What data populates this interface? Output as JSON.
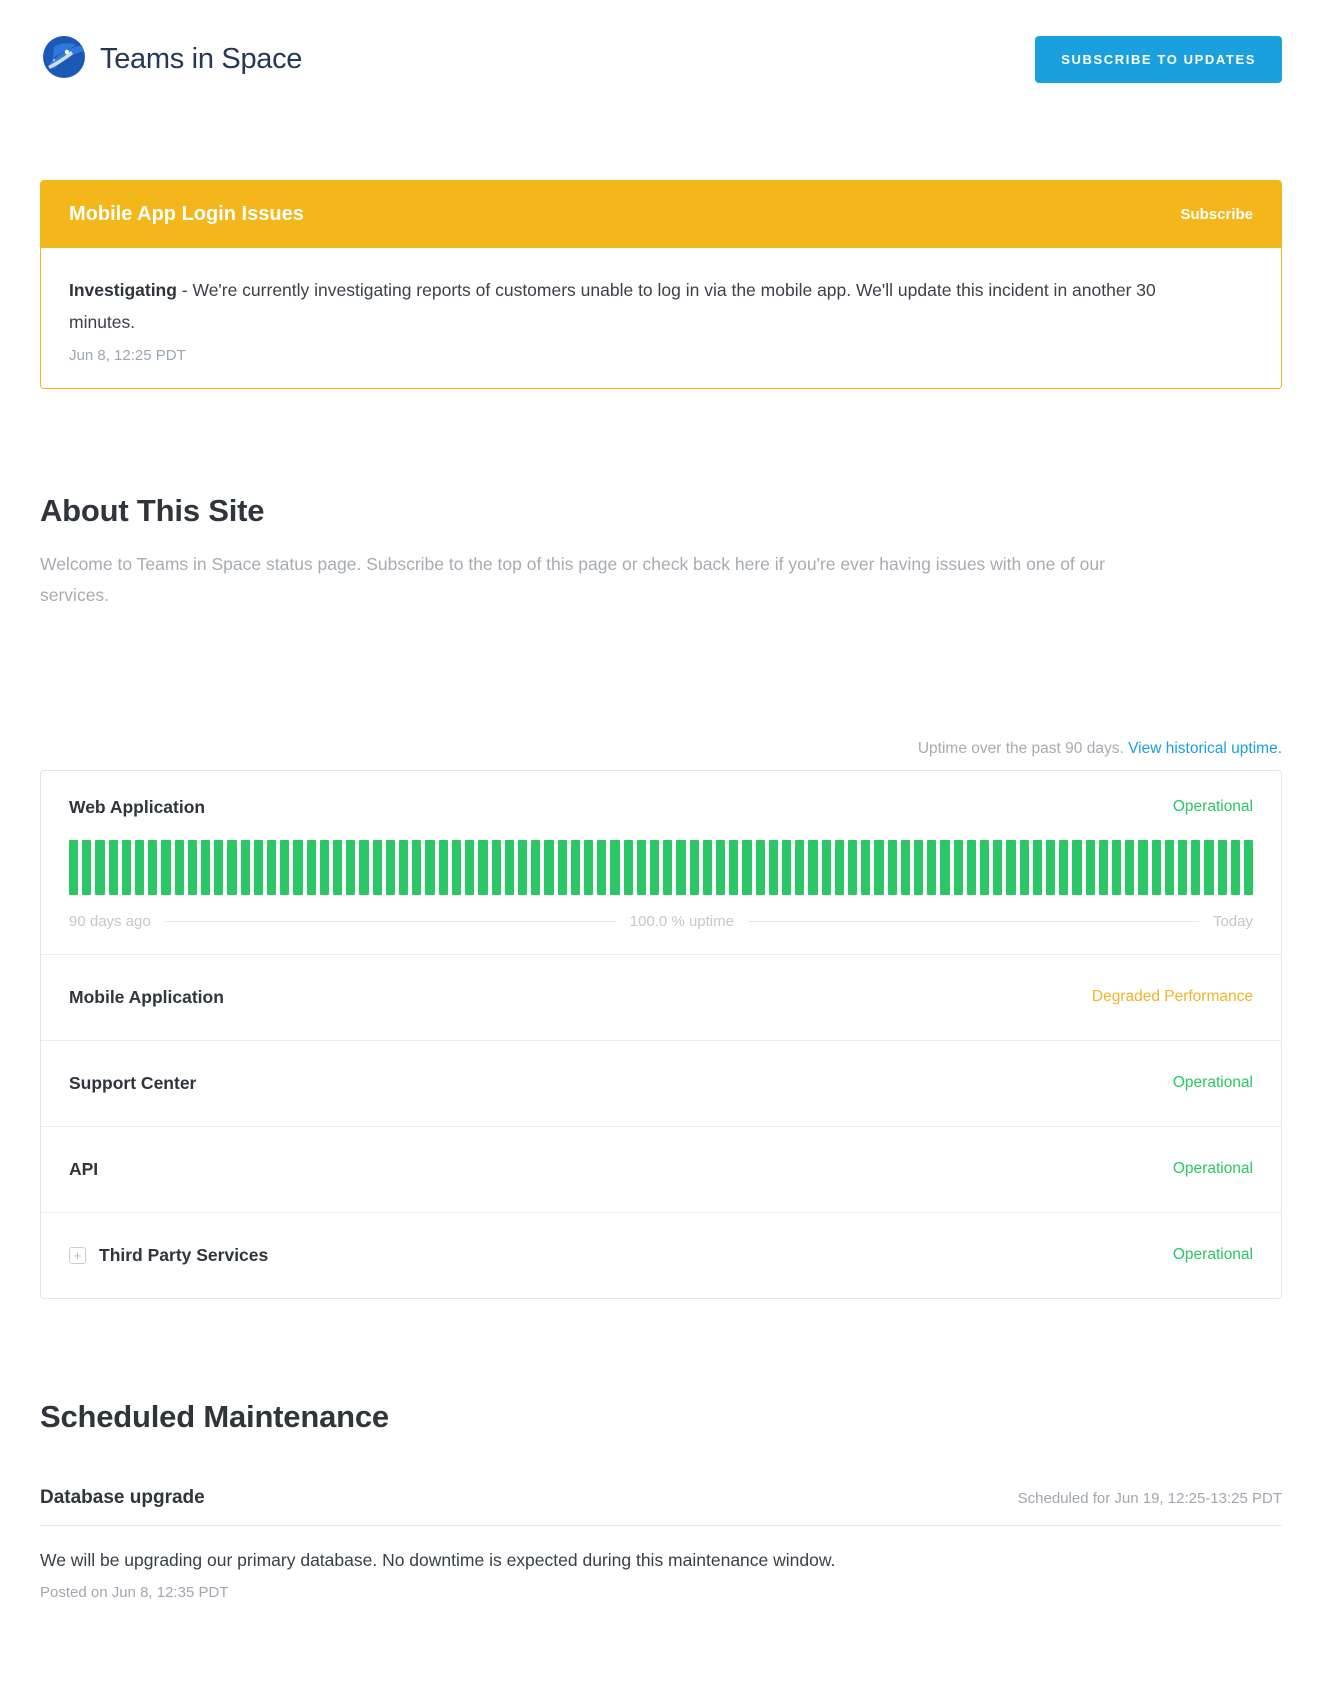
{
  "header": {
    "brand": "Teams in Space",
    "subscribe_button": "SUBSCRIBE TO UPDATES"
  },
  "incident": {
    "title": "Mobile App Login Issues",
    "subscribe_link": "Subscribe",
    "status_label": "Investigating",
    "message": " - We're currently investigating reports of customers unable to log in via the mobile app. We'll update this incident in another 30 minutes.",
    "timestamp": "Jun 8, 12:25 PDT"
  },
  "about": {
    "title": "About This Site",
    "description": "Welcome to Teams in Space status page. Subscribe to the top of this page or check back here if you're ever having issues with one of our services."
  },
  "uptime": {
    "caption": "Uptime over the past 90 days.",
    "link": "View historical uptime.",
    "bar_count": 90,
    "bar_color": "#2bc665",
    "legend_left": "90 days ago",
    "legend_center": "100.0 % uptime",
    "legend_right": "Today"
  },
  "services": [
    {
      "name": "Web Application",
      "status": "Operational"
    },
    {
      "name": "Mobile Application",
      "status": "Degraded Performance"
    },
    {
      "name": "Support Center",
      "status": "Operational"
    },
    {
      "name": "API",
      "status": "Operational"
    },
    {
      "name": "Third Party Services",
      "status": "Operational",
      "expand_icon": "+"
    }
  ],
  "maintenance": {
    "title": "Scheduled Maintenance",
    "item": {
      "name": "Database upgrade",
      "scheduled": "Scheduled for Jun 19, 12:25-13:25 PDT",
      "description": "We will be upgrading our primary database. No downtime is expected during this maintenance window.",
      "posted": "Posted on Jun 8, 12:35 PDT"
    }
  },
  "colors": {
    "accent_blue": "#1ba0de",
    "banner_yellow": "#f3b71c",
    "operational_green": "#2bc665",
    "degraded_amber": "#f0b428",
    "brand_navy": "#253858"
  }
}
